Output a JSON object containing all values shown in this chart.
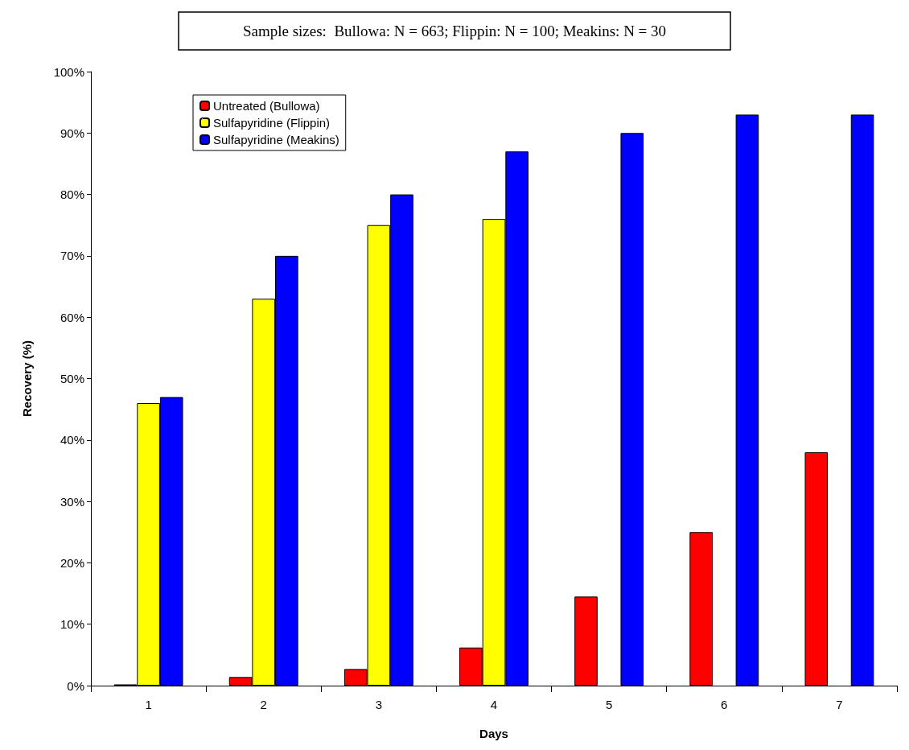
{
  "chart_data": {
    "type": "bar",
    "title": "Sample sizes:  Bullowa: N = 663; Flippin: N = 100; Meakins: N = 30",
    "xlabel": "Days",
    "ylabel": "Recovery (%)",
    "categories": [
      "1",
      "2",
      "3",
      "4",
      "5",
      "6",
      "7"
    ],
    "series": [
      {
        "name": "Untreated (Bullowa)",
        "color": "#ff0000",
        "values": [
          0.2,
          1.4,
          2.7,
          6.2,
          14.5,
          25,
          38
        ]
      },
      {
        "name": "Sulfapyridine (Flippin)",
        "color": "#ffff00",
        "values": [
          46,
          63,
          75,
          76,
          null,
          null,
          null
        ]
      },
      {
        "name": "Sulfapyridine (Meakins)",
        "color": "#0000ff",
        "values": [
          47,
          70,
          80,
          87,
          90,
          93,
          93
        ]
      }
    ],
    "ylim": [
      0,
      100
    ],
    "yticks": [
      {
        "value": 0,
        "label": "0%"
      },
      {
        "value": 10,
        "label": "10%"
      },
      {
        "value": 20,
        "label": "20%"
      },
      {
        "value": 30,
        "label": "30%"
      },
      {
        "value": 40,
        "label": "40%"
      },
      {
        "value": 50,
        "label": "50%"
      },
      {
        "value": 60,
        "label": "60%"
      },
      {
        "value": 70,
        "label": "70%"
      },
      {
        "value": 80,
        "label": "80%"
      },
      {
        "value": 90,
        "label": "90%"
      },
      {
        "value": 100,
        "label": "100%"
      }
    ],
    "grid": false,
    "legend": "top left"
  }
}
